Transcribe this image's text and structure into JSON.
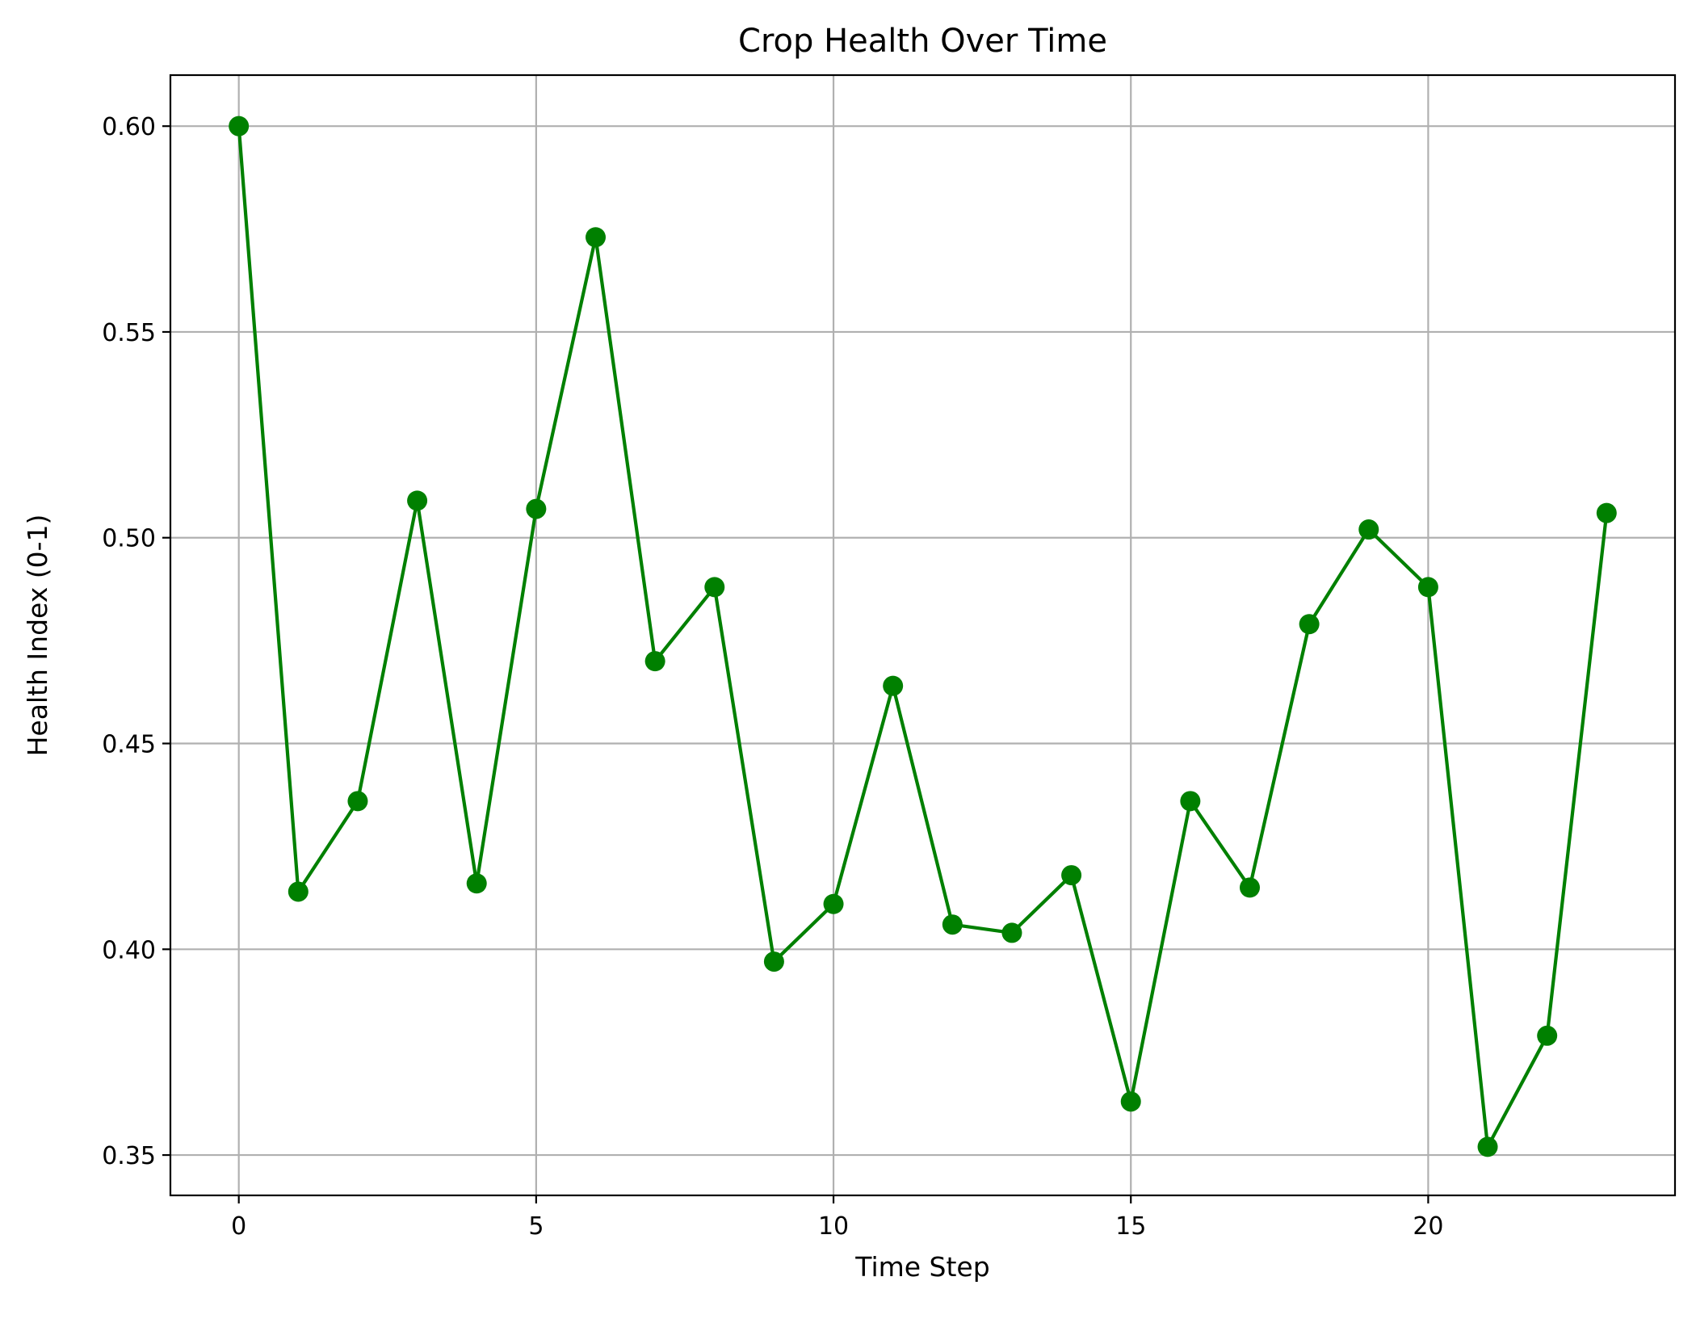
{
  "chart_data": {
    "type": "line",
    "title": "Crop Health Over Time",
    "xlabel": "Time Step",
    "ylabel": "Health Index (0-1)",
    "xlim": [
      -1.15,
      24.15
    ],
    "ylim": [
      0.3402,
      0.6124
    ],
    "x_ticks": [
      0,
      5,
      10,
      15,
      20
    ],
    "y_ticks": [
      0.35,
      0.4,
      0.45,
      0.5,
      0.55,
      0.6
    ],
    "y_tick_labels": [
      "0.35",
      "0.40",
      "0.45",
      "0.50",
      "0.55",
      "0.60"
    ],
    "grid": true,
    "legend": "none",
    "series": [
      {
        "color": "#008000",
        "marker": "circle",
        "x": [
          0,
          1,
          2,
          3,
          4,
          5,
          6,
          7,
          8,
          9,
          10,
          11,
          12,
          13,
          14,
          15,
          16,
          17,
          18,
          19,
          20,
          21,
          22,
          23
        ],
        "y": [
          0.6,
          0.414,
          0.436,
          0.509,
          0.416,
          0.507,
          0.573,
          0.47,
          0.488,
          0.397,
          0.411,
          0.464,
          0.406,
          0.404,
          0.418,
          0.363,
          0.436,
          0.415,
          0.479,
          0.502,
          0.488,
          0.352,
          0.379,
          0.506
        ]
      }
    ]
  }
}
